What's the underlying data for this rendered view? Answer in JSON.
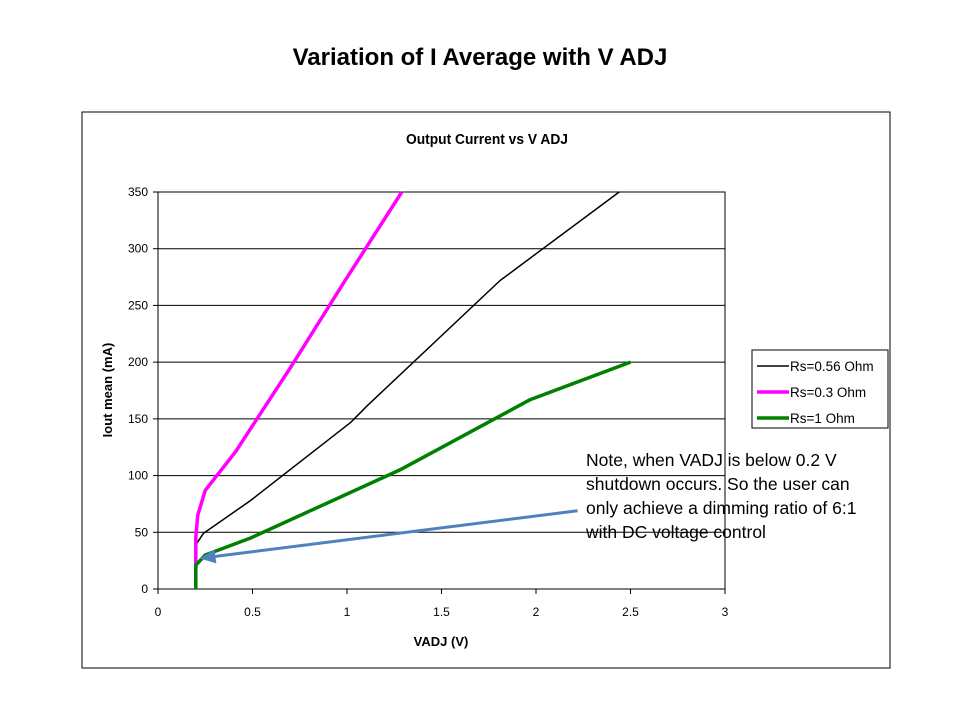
{
  "slide": {
    "title": "Variation of I Average with V ADJ",
    "note_lines": [
      "Note, when VADJ  is below 0.2 V",
      "shutdown  occurs. So the user can",
      "only achieve a dimming  ratio of 6:1",
      "with DC voltage control"
    ]
  },
  "chart_data": {
    "type": "line",
    "title": "Output Current vs V ADJ",
    "xlabel": "VADJ (V)",
    "ylabel": "Iout mean (mA)",
    "xlim": [
      0,
      3
    ],
    "ylim": [
      0,
      350
    ],
    "xticks": [
      "0",
      "0.5",
      "1",
      "1.5",
      "2",
      "2.5",
      "3"
    ],
    "yticks": [
      "0",
      "50",
      "100",
      "150",
      "200",
      "250",
      "300",
      "350"
    ],
    "grid": "horizontal",
    "legend_position": "right",
    "series": [
      {
        "name": "Rs=0.56 Ohm",
        "color": "#000000",
        "x": [
          0.2,
          0.24,
          0.49,
          1.02,
          1.11,
          1.81,
          2.44
        ],
        "y": [
          39,
          49,
          78,
          147,
          162,
          272,
          350
        ]
      },
      {
        "name": "Rs=0.3 Ohm",
        "color": "#ff00ff",
        "x": [
          0.2,
          0.2,
          0.21,
          0.25,
          0.41,
          0.7,
          0.99,
          1.29
        ],
        "y": [
          0,
          45,
          65,
          87,
          121,
          195,
          272,
          350
        ]
      },
      {
        "name": "Rs=1 Ohm",
        "color": "#008000",
        "x": [
          0.2,
          0.2,
          0.25,
          0.49,
          1.28,
          1.97,
          2.5
        ],
        "y": [
          0,
          21,
          30,
          45,
          105,
          167,
          200
        ]
      }
    ],
    "annotation": {
      "from": [
        2.22,
        69
      ],
      "to": [
        0.22,
        27
      ],
      "color": "#4f81bd"
    }
  }
}
